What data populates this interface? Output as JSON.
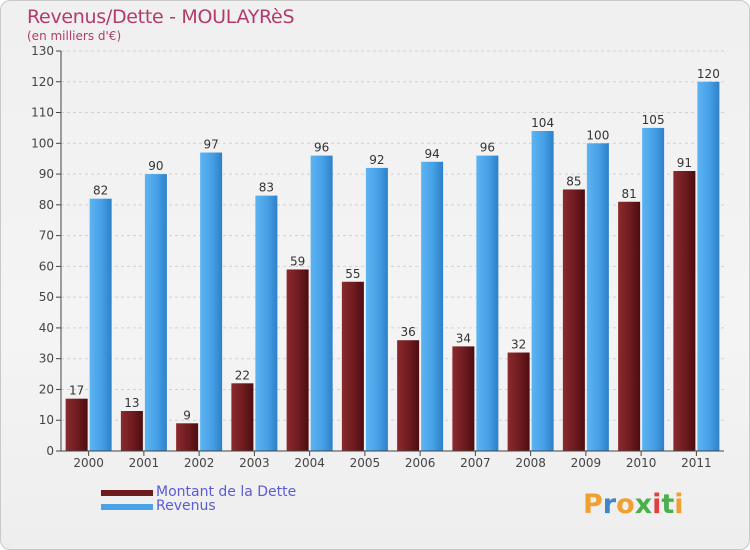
{
  "title": "Revenus/Dette - MOULAYRèS",
  "subtitle": "(en milliers d'€)",
  "chart_data": {
    "type": "bar",
    "categories": [
      "2000",
      "2001",
      "2002",
      "2003",
      "2004",
      "2005",
      "2006",
      "2007",
      "2008",
      "2009",
      "2010",
      "2011"
    ],
    "series": [
      {
        "name": "Montant de la Dette",
        "color": "#6e1b1f",
        "values": [
          17,
          13,
          9,
          22,
          59,
          55,
          36,
          34,
          32,
          85,
          81,
          91
        ]
      },
      {
        "name": "Revenus",
        "color": "#4aa3e8",
        "values": [
          82,
          90,
          97,
          83,
          96,
          92,
          94,
          96,
          104,
          100,
          105,
          120
        ]
      }
    ],
    "ylim": [
      0,
      130
    ],
    "yticks": [
      0,
      10,
      20,
      30,
      40,
      50,
      60,
      70,
      80,
      90,
      100,
      110,
      120,
      130
    ],
    "grid": true,
    "legend": "bottom-left"
  },
  "legend": {
    "items": [
      {
        "label": "Montant de la Dette",
        "color": "#6e1b1f"
      },
      {
        "label": "Revenus",
        "color": "#4aa3e8"
      }
    ]
  },
  "logo": {
    "letters": [
      "P",
      "r",
      "o",
      "x",
      "i",
      "t",
      "i"
    ],
    "colors": [
      "#f0a030",
      "#3d87c7",
      "#f0a030",
      "#4bb04b",
      "#e04040",
      "#4bb04b",
      "#f0a030"
    ]
  }
}
